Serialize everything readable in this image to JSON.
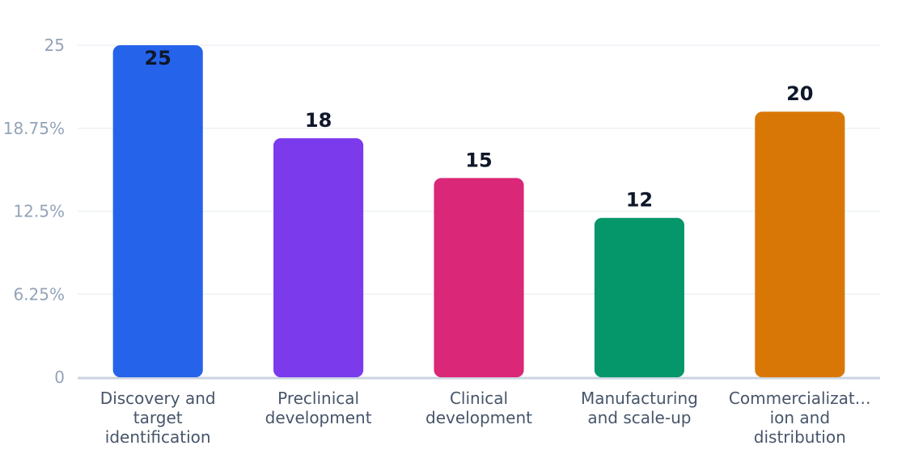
{
  "chart_data": {
    "type": "bar",
    "categories": [
      [
        "Discovery and",
        "target",
        "identification"
      ],
      [
        "Preclinical",
        "development"
      ],
      [
        "Clinical",
        "development"
      ],
      [
        "Manufacturing",
        "and scale-up"
      ],
      [
        "Commercializat…",
        "ion and",
        "distribution"
      ]
    ],
    "values": [
      25,
      18,
      15,
      12,
      20
    ],
    "colors": [
      "#2563eb",
      "#7c3aed",
      "#db2777",
      "#059669",
      "#d97706"
    ],
    "yticks": [
      {
        "value": 0,
        "label": "0"
      },
      {
        "value": 6.25,
        "label": "6.25%"
      },
      {
        "value": 12.5,
        "label": "12.5%"
      },
      {
        "value": 18.75,
        "label": "18.75%"
      },
      {
        "value": 25,
        "label": "25"
      }
    ],
    "ylim": [
      0,
      25
    ],
    "grid": true,
    "legend": "none",
    "title": "",
    "xlabel": "",
    "ylabel": ""
  }
}
